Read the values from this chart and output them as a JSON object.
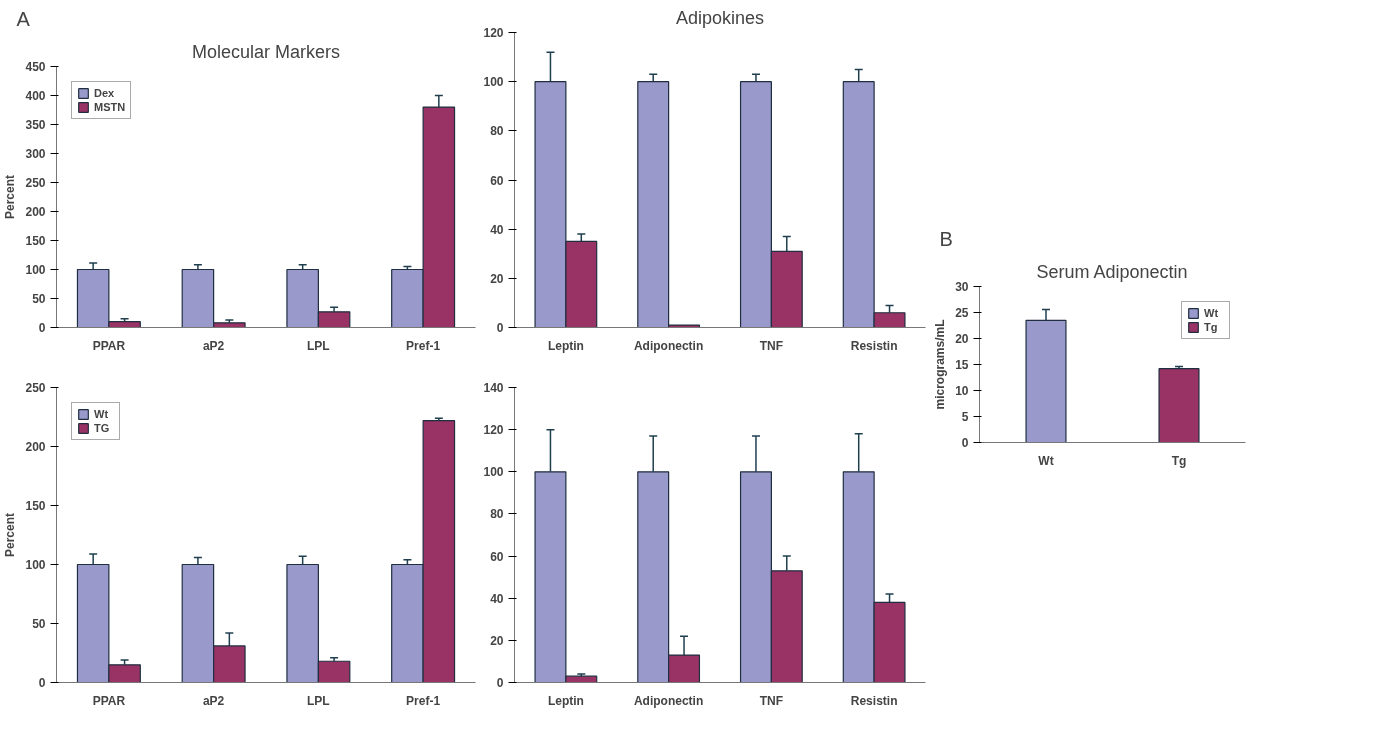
{
  "chart_data": [
    {
      "type": "bar",
      "title": "Molecular Markers",
      "annotations": [
        "A"
      ],
      "ylabel": "Percent",
      "categories": [
        "PPAR",
        "aP2",
        "LPL",
        "Pref-1"
      ],
      "ylim": [
        0,
        450
      ],
      "yticks": [
        0,
        50,
        100,
        150,
        200,
        250,
        300,
        350,
        400,
        450
      ],
      "grid": false,
      "legend": "top left",
      "series": [
        {
          "name": "Dex",
          "color": "#9999cc",
          "values": [
            100,
            100,
            100,
            100
          ],
          "errors": [
            [
              100,
              111
            ],
            [
              100,
              108
            ],
            [
              100,
              108
            ],
            [
              100,
              105
            ]
          ]
        },
        {
          "name": "MSTN",
          "color": "#993366",
          "values": [
            10,
            8,
            27,
            380
          ],
          "errors": [
            [
              10,
              15
            ],
            [
              8,
              13
            ],
            [
              27,
              35
            ],
            [
              380,
              400
            ]
          ]
        }
      ]
    },
    {
      "type": "bar",
      "title": "Adipokines",
      "categories": [
        "Leptin",
        "Adiponectin",
        "TNF",
        "Resistin"
      ],
      "ylim": [
        0,
        120
      ],
      "yticks": [
        0,
        20,
        40,
        60,
        80,
        100,
        120
      ],
      "grid": false,
      "legend": false,
      "series": [
        {
          "color": "#9999cc",
          "values": [
            100,
            100,
            100,
            100
          ],
          "errors": [
            [
              100,
              112
            ],
            [
              100,
              103
            ],
            [
              100,
              103
            ],
            [
              100,
              105
            ]
          ]
        },
        {
          "color": "#993366",
          "values": [
            35,
            1,
            31,
            6
          ],
          "errors": [
            [
              35,
              38
            ],
            null,
            [
              31,
              37
            ],
            [
              6,
              9
            ]
          ]
        }
      ]
    },
    {
      "type": "bar",
      "ylabel": "Percent",
      "categories": [
        "PPAR",
        "aP2",
        "LPL",
        "Pref-1"
      ],
      "ylim": [
        0,
        250
      ],
      "yticks": [
        0,
        50,
        100,
        150,
        200,
        250
      ],
      "grid": false,
      "legend": "top left",
      "series": [
        {
          "name": "Wt",
          "color": "#9999cc",
          "values": [
            100,
            100,
            100,
            100
          ],
          "errors": [
            [
              100,
              109
            ],
            [
              100,
              106
            ],
            [
              100,
              107
            ],
            [
              100,
              104
            ]
          ]
        },
        {
          "name": "TG",
          "color": "#993366",
          "values": [
            15,
            31,
            18,
            222
          ],
          "errors": [
            [
              15,
              19
            ],
            [
              31,
              42
            ],
            [
              18,
              21
            ],
            [
              222,
              224
            ]
          ]
        }
      ]
    },
    {
      "type": "bar",
      "categories": [
        "Leptin",
        "Adiponectin",
        "TNF",
        "Resistin"
      ],
      "ylim": [
        0,
        140
      ],
      "yticks": [
        0,
        20,
        40,
        60,
        80,
        100,
        120,
        140
      ],
      "grid": false,
      "legend": false,
      "series": [
        {
          "color": "#9999cc",
          "values": [
            100,
            100,
            100,
            100
          ],
          "errors": [
            [
              100,
              120
            ],
            [
              100,
              117
            ],
            [
              100,
              117
            ],
            [
              100,
              118
            ]
          ]
        },
        {
          "color": "#993366",
          "values": [
            3,
            13,
            53,
            38
          ],
          "errors": [
            [
              3,
              4
            ],
            [
              13,
              22
            ],
            [
              53,
              60
            ],
            [
              38,
              42
            ]
          ]
        }
      ]
    },
    {
      "type": "bar",
      "title": "Serum Adiponectin",
      "annotations": [
        "B"
      ],
      "ylabel": "micrograms/mL",
      "categories": [
        "Wt",
        "Tg"
      ],
      "ylim": [
        0,
        30
      ],
      "yticks": [
        0,
        5,
        10,
        15,
        20,
        25,
        30
      ],
      "grid": false,
      "legend": "top right",
      "series": [
        {
          "name": "Wt",
          "color": "#9999cc",
          "values": [
            23.5,
            null
          ],
          "errors": [
            [
              23.5,
              25.6
            ],
            null
          ]
        },
        {
          "name": "Tg",
          "color": "#993366",
          "values": [
            null,
            14.2
          ],
          "errors": [
            null,
            [
              14.2,
              14.6
            ]
          ]
        }
      ]
    }
  ]
}
